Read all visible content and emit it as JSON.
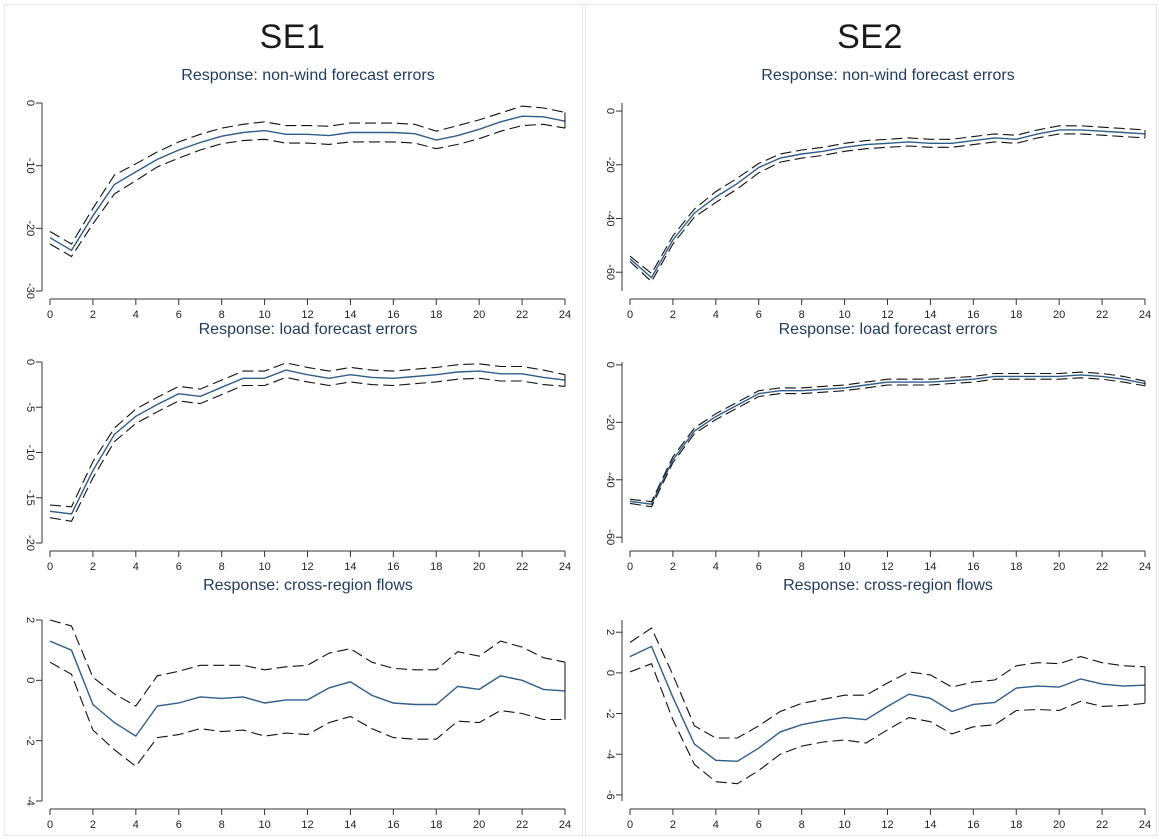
{
  "columns": [
    {
      "title": "SE1"
    },
    {
      "title": "SE2"
    }
  ],
  "chart_data": [
    {
      "type": "line",
      "column": 0,
      "row": 0,
      "title": "Response: non-wind forecast errors",
      "xlim": [
        0,
        24
      ],
      "ylim": [
        -30,
        0
      ],
      "xticks": [
        0,
        2,
        4,
        6,
        8,
        10,
        12,
        14,
        16,
        18,
        20,
        22,
        24
      ],
      "yticks": [
        0,
        -10,
        -20,
        -30
      ],
      "x": [
        0,
        1,
        2,
        3,
        4,
        5,
        6,
        7,
        8,
        9,
        10,
        11,
        12,
        13,
        14,
        15,
        16,
        17,
        18,
        19,
        20,
        21,
        22,
        23,
        24
      ],
      "series": [
        {
          "style": "solid",
          "values": [
            -21.5,
            -23.5,
            -18,
            -13,
            -11,
            -9,
            -7.5,
            -6.3,
            -5.3,
            -4.7,
            -4.4,
            -5,
            -5,
            -5.2,
            -4.7,
            -4.7,
            -4.7,
            -4.9,
            -5.9,
            -5.2,
            -4.2,
            -3,
            -2.1,
            -2.2,
            -2.9
          ]
        },
        {
          "style": "dashed",
          "values": [
            -20.5,
            -22.5,
            -16.8,
            -11.5,
            -9.7,
            -7.8,
            -6.2,
            -5,
            -4,
            -3.4,
            -3,
            -3.6,
            -3.6,
            -3.7,
            -3.2,
            -3.2,
            -3.2,
            -3.4,
            -4.5,
            -3.6,
            -2.7,
            -1.6,
            -0.5,
            -0.8,
            -1.5
          ]
        },
        {
          "style": "dashed",
          "values": [
            -22.5,
            -24.5,
            -19.3,
            -14.5,
            -12.4,
            -10.2,
            -8.8,
            -7.5,
            -6.5,
            -6,
            -5.8,
            -6.4,
            -6.4,
            -6.6,
            -6.2,
            -6.2,
            -6.2,
            -6.4,
            -7.3,
            -6.6,
            -5.7,
            -4.5,
            -3.6,
            -3.4,
            -4
          ]
        }
      ]
    },
    {
      "type": "line",
      "column": 0,
      "row": 1,
      "title": "Response: load forecast errors",
      "xlim": [
        0,
        24
      ],
      "ylim": [
        -20,
        0
      ],
      "xticks": [
        0,
        2,
        4,
        6,
        8,
        10,
        12,
        14,
        16,
        18,
        20,
        22,
        24
      ],
      "yticks": [
        0,
        -5,
        -10,
        -15,
        -20
      ],
      "x": [
        0,
        1,
        2,
        3,
        4,
        5,
        6,
        7,
        8,
        9,
        10,
        11,
        12,
        13,
        14,
        15,
        16,
        17,
        18,
        19,
        20,
        21,
        22,
        23,
        24
      ],
      "series": [
        {
          "style": "solid",
          "values": [
            -16.5,
            -16.8,
            -12,
            -8,
            -6,
            -4.7,
            -3.5,
            -3.8,
            -2.8,
            -1.8,
            -1.8,
            -0.9,
            -1.4,
            -1.8,
            -1.4,
            -1.7,
            -1.8,
            -1.6,
            -1.4,
            -1.1,
            -1,
            -1.3,
            -1.3,
            -1.7,
            -2
          ]
        },
        {
          "style": "dashed",
          "values": [
            -15.8,
            -16,
            -11,
            -7.3,
            -5.2,
            -3.9,
            -2.7,
            -3,
            -2,
            -1,
            -1,
            -0.1,
            -0.6,
            -1,
            -0.6,
            -0.9,
            -1,
            -0.8,
            -0.6,
            -0.3,
            -0.2,
            -0.5,
            -0.5,
            -0.9,
            -1.4
          ]
        },
        {
          "style": "dashed",
          "values": [
            -17.2,
            -17.6,
            -12.8,
            -8.8,
            -6.8,
            -5.5,
            -4.3,
            -4.6,
            -3.6,
            -2.6,
            -2.6,
            -1.7,
            -2.2,
            -2.6,
            -2.2,
            -2.5,
            -2.6,
            -2.4,
            -2.2,
            -1.9,
            -1.8,
            -2.1,
            -2.1,
            -2.5,
            -2.7
          ]
        }
      ]
    },
    {
      "type": "line",
      "column": 0,
      "row": 2,
      "title": "Response: cross-region flows",
      "xlim": [
        0,
        24
      ],
      "ylim": [
        -4,
        2
      ],
      "xticks": [
        0,
        2,
        4,
        6,
        8,
        10,
        12,
        14,
        16,
        18,
        20,
        22,
        24
      ],
      "yticks": [
        2,
        0,
        -2,
        -4
      ],
      "x": [
        0,
        1,
        2,
        3,
        4,
        5,
        6,
        7,
        8,
        9,
        10,
        11,
        12,
        13,
        14,
        15,
        16,
        17,
        18,
        19,
        20,
        21,
        22,
        23,
        24
      ],
      "series": [
        {
          "style": "solid",
          "values": [
            1.3,
            1,
            -0.8,
            -1.4,
            -1.85,
            -0.85,
            -0.75,
            -0.55,
            -0.6,
            -0.55,
            -0.75,
            -0.65,
            -0.65,
            -0.25,
            -0.05,
            -0.5,
            -0.75,
            -0.8,
            -0.8,
            -0.2,
            -0.3,
            0.15,
            0,
            -0.3,
            -0.35
          ]
        },
        {
          "style": "dashed",
          "values": [
            2,
            1.8,
            0.1,
            -0.45,
            -0.85,
            0.15,
            0.3,
            0.5,
            0.5,
            0.5,
            0.35,
            0.45,
            0.5,
            0.9,
            1.05,
            0.6,
            0.4,
            0.35,
            0.35,
            0.95,
            0.8,
            1.3,
            1.1,
            0.75,
            0.6
          ]
        },
        {
          "style": "dashed",
          "values": [
            0.6,
            0.2,
            -1.65,
            -2.3,
            -2.85,
            -1.9,
            -1.8,
            -1.6,
            -1.7,
            -1.65,
            -1.85,
            -1.75,
            -1.8,
            -1.4,
            -1.2,
            -1.6,
            -1.9,
            -1.95,
            -1.95,
            -1.35,
            -1.4,
            -1,
            -1.1,
            -1.3,
            -1.3
          ]
        }
      ]
    },
    {
      "type": "line",
      "column": 1,
      "row": 0,
      "title": "Response: non-wind forecast errors",
      "xlim": [
        0,
        24
      ],
      "ylim": [
        -67,
        3
      ],
      "xticks": [
        0,
        2,
        4,
        6,
        8,
        10,
        12,
        14,
        16,
        18,
        20,
        22,
        24
      ],
      "yticks": [
        0,
        -20,
        -40,
        -60
      ],
      "x": [
        0,
        1,
        2,
        3,
        4,
        5,
        6,
        7,
        8,
        9,
        10,
        11,
        12,
        13,
        14,
        15,
        16,
        17,
        18,
        19,
        20,
        21,
        22,
        23,
        24
      ],
      "series": [
        {
          "style": "solid",
          "values": [
            -55,
            -62,
            -48,
            -38,
            -32,
            -27,
            -21,
            -17.5,
            -16,
            -15,
            -13.5,
            -12.5,
            -12,
            -11.5,
            -12,
            -12,
            -11,
            -10,
            -10.5,
            -8.5,
            -7,
            -7,
            -7.5,
            -8,
            -8.5
          ]
        },
        {
          "style": "dashed",
          "values": [
            -54,
            -60.5,
            -46.5,
            -36.5,
            -30,
            -25,
            -19.5,
            -16,
            -14.5,
            -13.5,
            -12,
            -11,
            -10.5,
            -10,
            -10.5,
            -10.5,
            -9.5,
            -8.5,
            -9,
            -7,
            -5.5,
            -5.5,
            -6,
            -6.5,
            -7
          ]
        },
        {
          "style": "dashed",
          "values": [
            -56,
            -63.5,
            -49.5,
            -39.5,
            -34,
            -29,
            -23,
            -19,
            -17.5,
            -16.5,
            -15,
            -14,
            -13.5,
            -13,
            -13.5,
            -13.5,
            -12.5,
            -11.5,
            -12,
            -10,
            -8.5,
            -8.5,
            -9,
            -9.5,
            -10
          ]
        }
      ]
    },
    {
      "type": "line",
      "column": 1,
      "row": 1,
      "title": "Response: load forecast errors",
      "xlim": [
        0,
        24
      ],
      "ylim": [
        -62,
        1
      ],
      "xticks": [
        0,
        2,
        4,
        6,
        8,
        10,
        12,
        14,
        16,
        18,
        20,
        22,
        24
      ],
      "yticks": [
        0,
        -20,
        -40,
        -60
      ],
      "x": [
        0,
        1,
        2,
        3,
        4,
        5,
        6,
        7,
        8,
        9,
        10,
        11,
        12,
        13,
        14,
        15,
        16,
        17,
        18,
        19,
        20,
        21,
        22,
        23,
        24
      ],
      "series": [
        {
          "style": "solid",
          "values": [
            -47.5,
            -48.5,
            -33,
            -23,
            -18,
            -14,
            -10,
            -9,
            -9,
            -8.5,
            -8,
            -7,
            -6,
            -6,
            -6,
            -5.5,
            -5,
            -4,
            -4,
            -4,
            -4,
            -3.5,
            -4,
            -5,
            -6.5
          ]
        },
        {
          "style": "dashed",
          "values": [
            -46.8,
            -47.6,
            -32,
            -22,
            -17,
            -13,
            -9,
            -8,
            -8,
            -7.5,
            -7,
            -6,
            -5,
            -5,
            -5,
            -4.5,
            -4,
            -3,
            -3,
            -3,
            -3,
            -2.5,
            -3,
            -4,
            -5.7
          ]
        },
        {
          "style": "dashed",
          "values": [
            -48.2,
            -49.4,
            -34,
            -24,
            -19,
            -15,
            -11,
            -10,
            -10,
            -9.5,
            -9,
            -8,
            -7,
            -7,
            -7,
            -6.5,
            -6,
            -5,
            -5,
            -5,
            -5,
            -4.5,
            -5,
            -6,
            -7.3
          ]
        }
      ]
    },
    {
      "type": "line",
      "column": 1,
      "row": 2,
      "title": "Response: cross-region flows",
      "xlim": [
        0,
        24
      ],
      "ylim": [
        -6.3,
        2.6
      ],
      "xticks": [
        0,
        2,
        4,
        6,
        8,
        10,
        12,
        14,
        16,
        18,
        20,
        22,
        24
      ],
      "yticks": [
        2,
        0,
        -2,
        -4,
        -6
      ],
      "x": [
        0,
        1,
        2,
        3,
        4,
        5,
        6,
        7,
        8,
        9,
        10,
        11,
        12,
        13,
        14,
        15,
        16,
        17,
        18,
        19,
        20,
        21,
        22,
        23,
        24
      ],
      "series": [
        {
          "style": "solid",
          "values": [
            0.8,
            1.3,
            -1.2,
            -3.5,
            -4.3,
            -4.35,
            -3.7,
            -2.9,
            -2.55,
            -2.35,
            -2.2,
            -2.3,
            -1.65,
            -1.05,
            -1.25,
            -1.9,
            -1.55,
            -1.45,
            -0.75,
            -0.65,
            -0.7,
            -0.3,
            -0.55,
            -0.65,
            -0.6
          ]
        },
        {
          "style": "dashed",
          "values": [
            1.5,
            2.2,
            -0.1,
            -2.6,
            -3.2,
            -3.2,
            -2.6,
            -1.9,
            -1.5,
            -1.3,
            -1.1,
            -1.1,
            -0.5,
            0.05,
            -0.1,
            -0.7,
            -0.45,
            -0.35,
            0.35,
            0.5,
            0.45,
            0.8,
            0.5,
            0.35,
            0.3
          ]
        },
        {
          "style": "dashed",
          "values": [
            0.05,
            0.45,
            -2.3,
            -4.5,
            -5.35,
            -5.45,
            -4.8,
            -4,
            -3.6,
            -3.4,
            -3.3,
            -3.45,
            -2.8,
            -2.2,
            -2.4,
            -3,
            -2.65,
            -2.55,
            -1.85,
            -1.8,
            -1.85,
            -1.4,
            -1.65,
            -1.6,
            -1.5
          ]
        }
      ]
    }
  ]
}
